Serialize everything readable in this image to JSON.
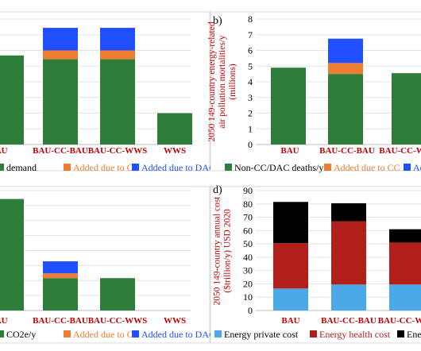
{
  "chart_data": [
    {
      "panel": "a",
      "type": "bar",
      "stacked": true,
      "title": "",
      "ylabel": "",
      "categories": [
        "BAU",
        "BAU-CC-BAU",
        "BAU-CC-WWS",
        "WWS"
      ],
      "category_labels": [
        "BAU",
        "BAU-CC-BAU",
        "BAU-CC-WWS",
        "WWS"
      ],
      "ylim": [
        0,
        1
      ],
      "series": [
        {
          "name": "demand",
          "color": "#2e7d3a",
          "values": [
            0.71,
            0.68,
            0.68,
            0.25
          ]
        },
        {
          "name": "Added due to CC",
          "color": "#ed7d31",
          "values": [
            0,
            0.07,
            0.07,
            0
          ]
        },
        {
          "name": "Added due to DAC",
          "color": "#1f4fff",
          "values": [
            0,
            0.18,
            0.18,
            0
          ]
        }
      ],
      "legend_position": "bottom"
    },
    {
      "panel": "b",
      "panel_label": "b)",
      "type": "bar",
      "stacked": true,
      "title": "",
      "ylabel": "2050 149-country energy-related air pollution mortalities/y (millions)",
      "ylabel_lines": [
        "2050 149-country energy-related",
        "air pollution mortalities/y",
        "(millions)"
      ],
      "categories": [
        "BAU",
        "BAU-CC-BAU",
        "BAU-CC-WWS"
      ],
      "category_labels": [
        "BAU",
        "BAU-CC-BAU",
        "BAU-CC-WV"
      ],
      "ylim": [
        0,
        8
      ],
      "yticks": [
        0,
        1,
        2,
        3,
        4,
        5,
        6,
        7,
        8
      ],
      "series": [
        {
          "name": "Non-CC/DAC deaths/y",
          "color": "#2e7d3a",
          "values": [
            4.9,
            4.5,
            4.55
          ]
        },
        {
          "name": "Added due to CC",
          "color": "#ed7d31",
          "values": [
            0,
            0.7,
            0
          ]
        },
        {
          "name": "Added due to DAC",
          "color": "#1f4fff",
          "values": [
            0,
            1.55,
            0
          ]
        }
      ],
      "legend_labels": [
        "Non-CC/DAC deaths/y",
        "Added due to CC",
        "Ad"
      ],
      "legend_position": "bottom"
    },
    {
      "panel": "c",
      "type": "bar",
      "stacked": true,
      "title": "",
      "ylabel": "",
      "categories": [
        "BAU",
        "BAU-CC-BAU",
        "BAU-CC-WWS",
        "WWS"
      ],
      "category_labels": [
        "BAU",
        "BAU-CC-BAU",
        "BAU-CC-WWS",
        "WWS"
      ],
      "ylim": [
        0,
        1
      ],
      "series": [
        {
          "name": "CO2e/y",
          "color": "#2e7d3a",
          "values": [
            0.93,
            0.27,
            0.27,
            0
          ]
        },
        {
          "name": "Added due to CC",
          "color": "#ed7d31",
          "values": [
            0,
            0.04,
            0,
            0
          ]
        },
        {
          "name": "Added due to DAC",
          "color": "#1f4fff",
          "values": [
            0,
            0.1,
            0,
            0
          ]
        }
      ],
      "legend_position": "bottom"
    },
    {
      "panel": "d",
      "panel_label": "d)",
      "type": "bar",
      "stacked": true,
      "title": "",
      "ylabel": "2050 149-country annual cost ($trillion/y) USD 2020",
      "ylabel_lines": [
        "2050 149-country annual cost",
        "($trillion/y) USD 2020"
      ],
      "categories": [
        "BAU",
        "BAU-CC-BAU",
        "BAU-CC-WWS"
      ],
      "category_labels": [
        "BAU",
        "BAU-CC-BAU",
        "BAU-CC-WW"
      ],
      "ylim": [
        0,
        90
      ],
      "yticks": [
        0,
        10,
        20,
        30,
        40,
        50,
        60,
        70,
        80,
        90
      ],
      "series": [
        {
          "name": "Energy private cost",
          "color": "#4aa9e6",
          "values": [
            16.5,
            19.5,
            19.5
          ]
        },
        {
          "name": "Energy health cost",
          "color": "#b11f1a",
          "values": [
            34,
            47.5,
            31.5
          ]
        },
        {
          "name": "Energy climate cost",
          "color": "#000000",
          "values": [
            31,
            13.5,
            10
          ]
        }
      ],
      "legend_labels": [
        "Energy private cost",
        "Energy health cost",
        "Energ"
      ],
      "legend_position": "bottom"
    }
  ]
}
